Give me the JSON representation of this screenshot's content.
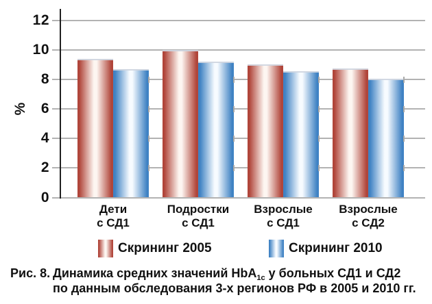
{
  "chart_data": {
    "type": "bar",
    "title": "",
    "xlabel": "",
    "ylabel": "%",
    "ylim": [
      0,
      12
    ],
    "yticks": [
      0,
      2,
      4,
      6,
      8,
      10,
      12
    ],
    "grid": true,
    "legend_position": "bottom",
    "categories": [
      "Дети\nс СД1",
      "Подростки\nс СД1",
      "Взрослые\nс СД1",
      "Взрослые\nс СД2"
    ],
    "series": [
      {
        "name": "Скрининг 2005",
        "color": "#b0453a",
        "highlight_color": "#fdf6f1",
        "values": [
          9.4,
          10.0,
          9.05,
          8.75
        ]
      },
      {
        "name": "Скрининг 2010",
        "color": "#3f82c3",
        "highlight_color": "#f7fbff",
        "values": [
          8.7,
          9.2,
          8.55,
          8.05
        ]
      }
    ],
    "gridline_color": "#b2b2b2",
    "axis_color": "#1f1f1f"
  },
  "caption": {
    "label": "Рис. 8.",
    "line1_pre": "Динамика средних значений HbA",
    "line1_sub": "1c",
    "line1_post": " у больных СД1 и СД2",
    "line2": "по данным обследования 3-х регионов РФ в 2005 и 2010 гг."
  }
}
